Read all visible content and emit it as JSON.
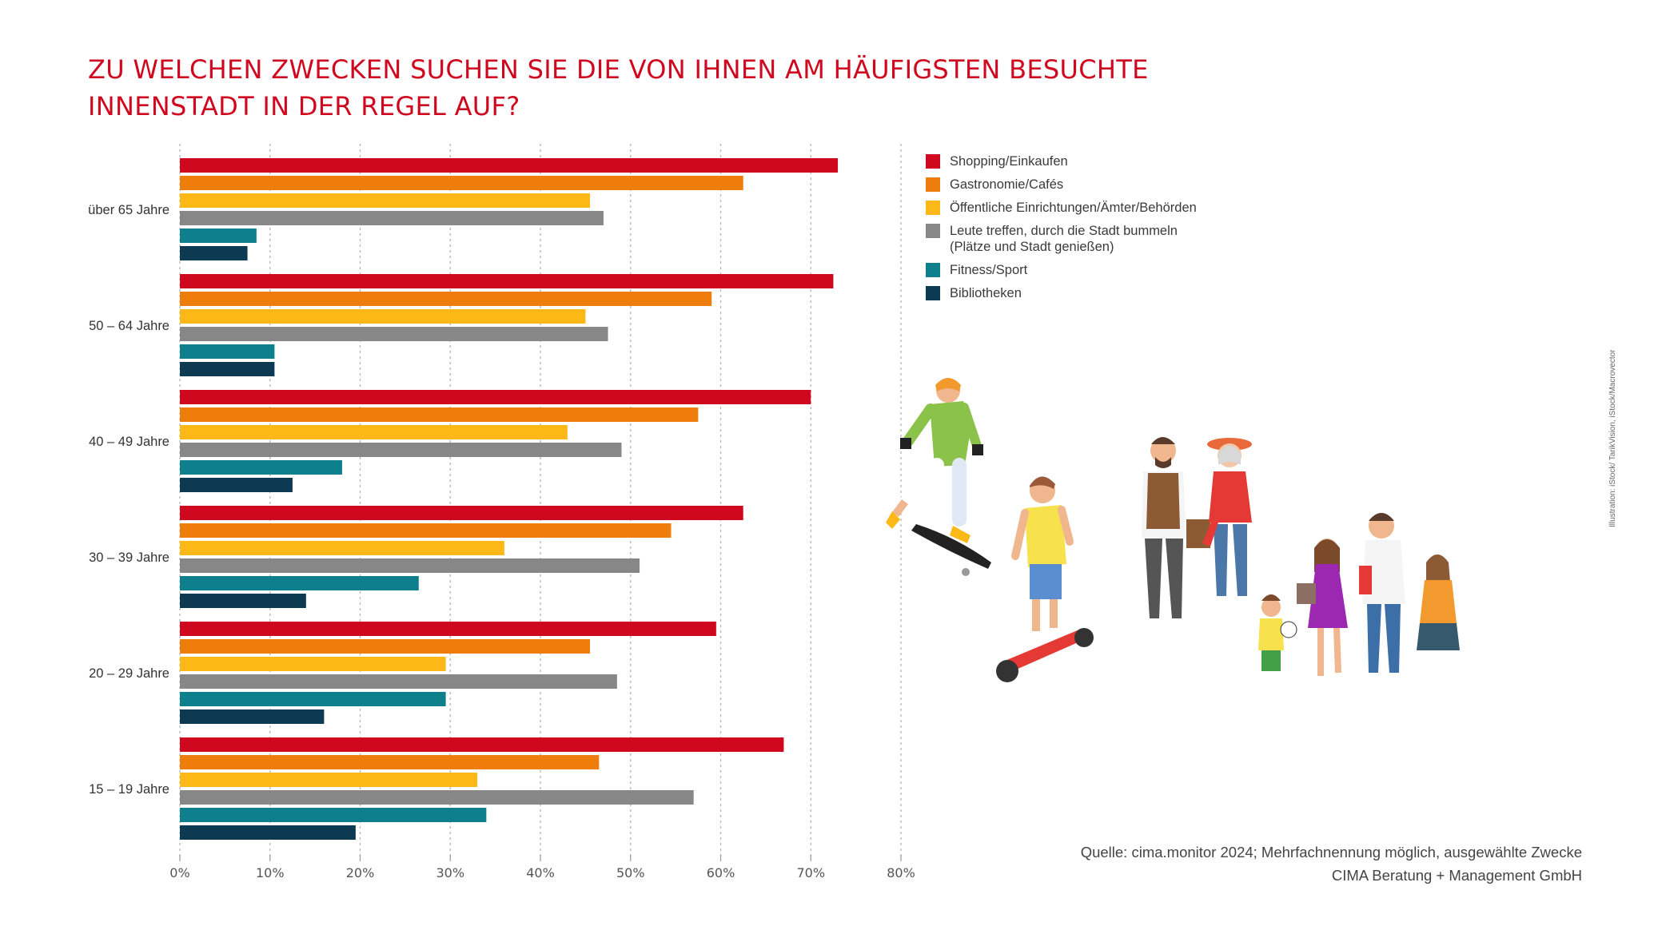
{
  "title": {
    "line1": "ZU WELCHEN ZWECKEN SUCHEN SIE DIE VON IHNEN AM HÄUFIGSTEN BESUCHTE",
    "line2": "INNENSTADT IN DER REGEL AUF?"
  },
  "source": {
    "line1": "Quelle: cima.monitor 2024; Mehrfachnennung möglich, ausgewählte Zwecke",
    "line2": "CIMA Beratung + Management GmbH"
  },
  "credit": "Illustration: iStock/ TarikVision, iStock/Macrovector",
  "colors": {
    "title": "#d0081f",
    "shopping": "#d0081f",
    "gastronomie": "#ef7d0b",
    "oeffentlich": "#fbb817",
    "leute": "#878787",
    "fitness": "#0e7f8c",
    "bibliotheken": "#0b3a52"
  },
  "chart_data": {
    "type": "bar",
    "orientation": "horizontal",
    "categories": [
      "über 65 Jahre",
      "50 – 64 Jahre",
      "40 – 49 Jahre",
      "30 – 39 Jahre",
      "20 – 29 Jahre",
      "15 – 19 Jahre"
    ],
    "series": [
      {
        "name": "Shopping/Einkaufen",
        "color": "#d0081f",
        "values": [
          73,
          72.5,
          70,
          62.5,
          59.5,
          67
        ]
      },
      {
        "name": "Gastronomie/Cafés",
        "color": "#ef7d0b",
        "values": [
          62.5,
          59,
          57.5,
          54.5,
          45.5,
          46.5
        ]
      },
      {
        "name": "Öffentliche Einrichtungen/Ämter/Behörden",
        "color": "#fbb817",
        "values": [
          45.5,
          45,
          43,
          36,
          29.5,
          33
        ]
      },
      {
        "name": "Leute treffen, durch die Stadt bummeln\n(Plätze und Stadt genießen)",
        "color": "#878787",
        "values": [
          47,
          47.5,
          49,
          51,
          48.5,
          57
        ]
      },
      {
        "name": "Fitness/Sport",
        "color": "#0e7f8c",
        "values": [
          8.5,
          10.5,
          18,
          26.5,
          29.5,
          34
        ]
      },
      {
        "name": "Bibliotheken",
        "color": "#0b3a52",
        "values": [
          7.5,
          10.5,
          12.5,
          14,
          16,
          19.5
        ]
      }
    ],
    "xticks": [
      "0%",
      "10%",
      "20%",
      "30%",
      "40%",
      "50%",
      "60%",
      "70%",
      "80%"
    ],
    "xlim": [
      0,
      80
    ],
    "grid": true,
    "legend_position": "right"
  }
}
